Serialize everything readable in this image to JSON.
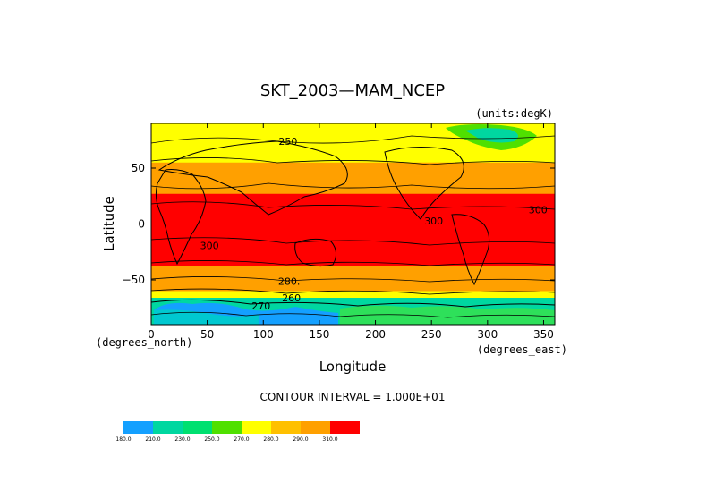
{
  "chart_data": {
    "type": "heatmap",
    "title": "SKT_2003—MAM_NCEP",
    "units_label": "(units:degK)",
    "xlabel": "Longitude",
    "ylabel": "Latitude",
    "xunit_label": "(degrees_east)",
    "yunit_label": "(degrees_north)",
    "xlim": [
      0,
      360
    ],
    "ylim": [
      -90,
      90
    ],
    "x_ticks": [
      0,
      50,
      100,
      150,
      200,
      250,
      300,
      350
    ],
    "y_ticks": [
      50,
      0,
      -50
    ],
    "y_tick_labels": [
      "50",
      "0",
      "−50"
    ],
    "contour_interval_text": "CONTOUR INTERVAL = 1.000E+01",
    "contour_labels": [
      {
        "text": "250",
        "lon": 122,
        "lat": 74
      },
      {
        "text": "300",
        "lon": 252,
        "lat": 3
      },
      {
        "text": "300",
        "lon": 345,
        "lat": 13
      },
      {
        "text": "300",
        "lon": 52,
        "lat": -19
      },
      {
        "text": "280.",
        "lon": 123,
        "lat": -51
      },
      {
        "text": "260",
        "lon": 125,
        "lat": -66
      },
      {
        "text": "270",
        "lon": 98,
        "lat": -73
      }
    ],
    "bands": [
      {
        "value": 310,
        "color": "#ff0000",
        "south": -38,
        "north": 27
      },
      {
        "value": 290,
        "color": "#ffa000",
        "south": -60,
        "north": 55
      },
      {
        "value": 270,
        "color": "#ffff00",
        "south": -66,
        "north": 90
      }
    ],
    "legend": {
      "levels": [
        "180.0",
        "210.0",
        "230.0",
        "250.0",
        "270.0",
        "280.0",
        "290.0",
        "310.0"
      ],
      "colors": [
        "#14a0ff",
        "#00d7a0",
        "#00e070",
        "#50e000",
        "#ffff00",
        "#ffc000",
        "#ffa000",
        "#ff0000"
      ]
    }
  }
}
